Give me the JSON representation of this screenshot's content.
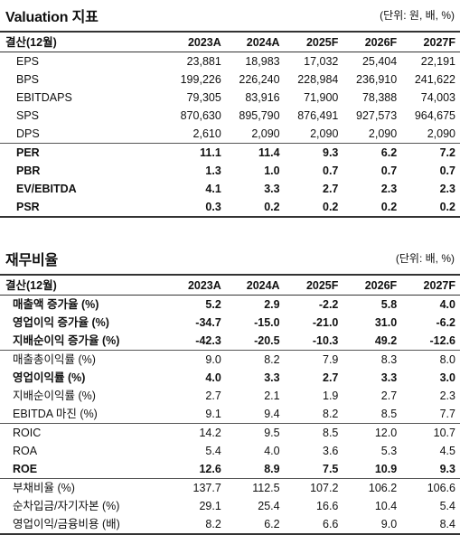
{
  "valuation": {
    "title": "Valuation 지표",
    "unit": "(단위: 원, 배, %)",
    "columns": [
      "결산(12월)",
      "2023A",
      "2024A",
      "2025F",
      "2026F",
      "2027F"
    ],
    "rows": [
      {
        "label": "EPS",
        "values": [
          "23,881",
          "18,983",
          "17,032",
          "25,404",
          "22,191"
        ],
        "bold": false
      },
      {
        "label": "BPS",
        "values": [
          "199,226",
          "226,240",
          "228,984",
          "236,910",
          "241,622"
        ],
        "bold": false
      },
      {
        "label": "EBITDAPS",
        "values": [
          "79,305",
          "83,916",
          "71,900",
          "78,388",
          "74,003"
        ],
        "bold": false
      },
      {
        "label": "SPS",
        "values": [
          "870,630",
          "895,790",
          "876,491",
          "927,573",
          "964,675"
        ],
        "bold": false
      },
      {
        "label": "DPS",
        "values": [
          "2,610",
          "2,090",
          "2,090",
          "2,090",
          "2,090"
        ],
        "bold": false
      },
      {
        "label": "PER",
        "values": [
          "11.1",
          "11.4",
          "9.3",
          "6.2",
          "7.2"
        ],
        "bold": true
      },
      {
        "label": "PBR",
        "values": [
          "1.3",
          "1.0",
          "0.7",
          "0.7",
          "0.7"
        ],
        "bold": true
      },
      {
        "label": "EV/EBITDA",
        "values": [
          "4.1",
          "3.3",
          "2.7",
          "2.3",
          "2.3"
        ],
        "bold": true
      },
      {
        "label": "PSR",
        "values": [
          "0.3",
          "0.2",
          "0.2",
          "0.2",
          "0.2"
        ],
        "bold": true
      }
    ]
  },
  "ratios": {
    "title": "재무비율",
    "unit": "(단위: 배, %)",
    "columns": [
      "결산(12월)",
      "2023A",
      "2024A",
      "2025F",
      "2026F",
      "2027F"
    ],
    "rows": [
      {
        "label": "매출액 증가율 (%)",
        "values": [
          "5.2",
          "2.9",
          "-2.2",
          "5.8",
          "4.0"
        ],
        "bold": true
      },
      {
        "label": "영업이익 증가율 (%)",
        "values": [
          "-34.7",
          "-15.0",
          "-21.0",
          "31.0",
          "-6.2"
        ],
        "bold": true
      },
      {
        "label": "지배순이익 증가율 (%)",
        "values": [
          "-42.3",
          "-20.5",
          "-10.3",
          "49.2",
          "-12.6"
        ],
        "bold": true
      },
      {
        "label": "매출총이익률 (%)",
        "values": [
          "9.0",
          "8.2",
          "7.9",
          "8.3",
          "8.0"
        ],
        "bold": false
      },
      {
        "label": "영업이익률 (%)",
        "values": [
          "4.0",
          "3.3",
          "2.7",
          "3.3",
          "3.0"
        ],
        "bold": true
      },
      {
        "label": "지배순이익률 (%)",
        "values": [
          "2.7",
          "2.1",
          "1.9",
          "2.7",
          "2.3"
        ],
        "bold": false
      },
      {
        "label": "EBITDA 마진 (%)",
        "values": [
          "9.1",
          "9.4",
          "8.2",
          "8.5",
          "7.7"
        ],
        "bold": false
      },
      {
        "label": "ROIC",
        "values": [
          "14.2",
          "9.5",
          "8.5",
          "12.0",
          "10.7"
        ],
        "bold": false
      },
      {
        "label": "ROA",
        "values": [
          "5.4",
          "4.0",
          "3.6",
          "5.3",
          "4.5"
        ],
        "bold": false
      },
      {
        "label": "ROE",
        "values": [
          "12.6",
          "8.9",
          "7.5",
          "10.9",
          "9.3"
        ],
        "bold": true
      },
      {
        "label": "부채비율 (%)",
        "values": [
          "137.7",
          "112.5",
          "107.2",
          "106.2",
          "106.6"
        ],
        "bold": false
      },
      {
        "label": "순차입금/자기자본 (%)",
        "values": [
          "29.1",
          "25.4",
          "16.6",
          "10.4",
          "5.4"
        ],
        "bold": false
      },
      {
        "label": "영업이익/금융비용 (배)",
        "values": [
          "8.2",
          "6.2",
          "6.6",
          "9.0",
          "8.4"
        ],
        "bold": false
      }
    ]
  }
}
